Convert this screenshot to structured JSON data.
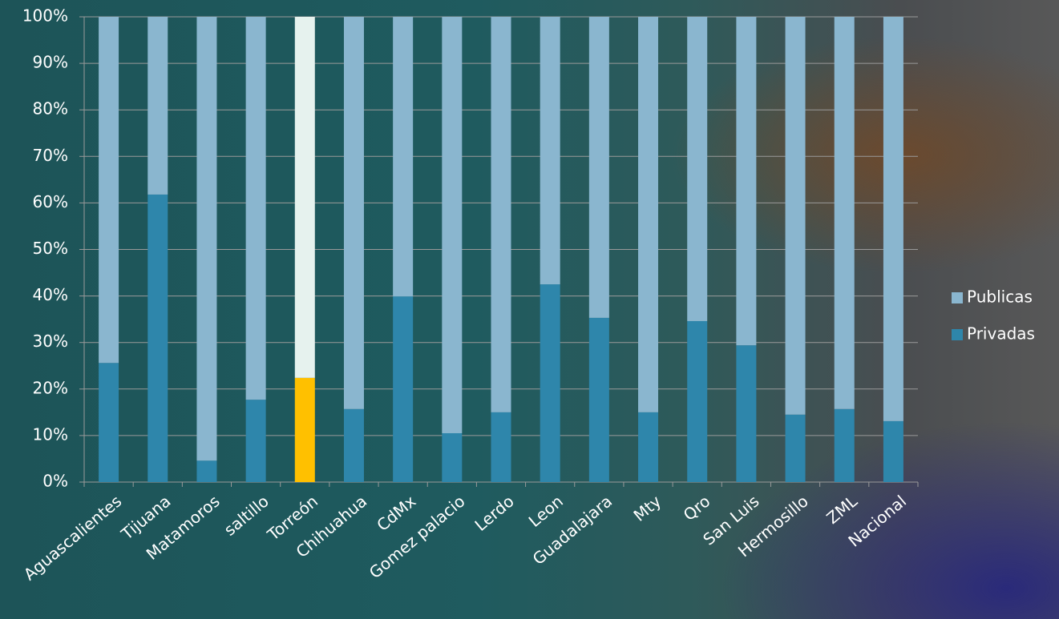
{
  "chart_data": {
    "type": "stacked_bar",
    "categories": [
      "Aguascalientes",
      "Tijuana",
      "Matamoros",
      "saltillo",
      "Torreón",
      "Chihuahua",
      "CdMx",
      "Gomez palacio",
      "Lerdo",
      "Leon",
      "Guadalajara",
      "Mty",
      "Qro",
      "San Luis",
      "Hermosillo",
      "ZML",
      "Nacional"
    ],
    "series": [
      {
        "name": "Privadas",
        "color": "#2e86ab",
        "colors": [
          "#2e86ab",
          "#2e86ab",
          "#2e86ab",
          "#2e86ab",
          "#ffc000",
          "#2e86ab",
          "#2e86ab",
          "#2e86ab",
          "#2e86ab",
          "#2e86ab",
          "#2e86ab",
          "#2e86ab",
          "#2e86ab",
          "#2e86ab",
          "#2e86ab",
          "#2e86ab",
          "#2e86ab"
        ],
        "values": [
          25.6,
          61.8,
          4.6,
          17.7,
          22.4,
          15.7,
          39.9,
          10.5,
          15.0,
          42.5,
          35.3,
          15.0,
          34.6,
          29.4,
          14.5,
          15.7,
          13.1
        ]
      },
      {
        "name": "Publicas",
        "color": "#8ab6cf",
        "colors": [
          "#8ab6cf",
          "#8ab6cf",
          "#8ab6cf",
          "#8ab6cf",
          "#e6f2ee",
          "#8ab6cf",
          "#8ab6cf",
          "#8ab6cf",
          "#8ab6cf",
          "#8ab6cf",
          "#8ab6cf",
          "#8ab6cf",
          "#8ab6cf",
          "#8ab6cf",
          "#8ab6cf",
          "#8ab6cf",
          "#8ab6cf"
        ],
        "values": [
          74.4,
          38.2,
          95.4,
          82.3,
          77.6,
          84.3,
          60.1,
          89.5,
          85.0,
          57.5,
          64.7,
          85.0,
          65.4,
          70.6,
          85.5,
          84.3,
          86.9
        ]
      }
    ],
    "ylim": [
      0,
      100
    ],
    "yticks": [
      {
        "value": 0,
        "label": "0%"
      },
      {
        "value": 10,
        "label": "10%"
      },
      {
        "value": 20,
        "label": "20%"
      },
      {
        "value": 30,
        "label": "30%"
      },
      {
        "value": 40,
        "label": "40%"
      },
      {
        "value": 50,
        "label": "50%"
      },
      {
        "value": 60,
        "label": "60%"
      },
      {
        "value": 70,
        "label": "70%"
      },
      {
        "value": 80,
        "label": "80%"
      },
      {
        "value": 90,
        "label": "90%"
      },
      {
        "value": 100,
        "label": "100%"
      }
    ],
    "grid": true,
    "legend": "right"
  }
}
